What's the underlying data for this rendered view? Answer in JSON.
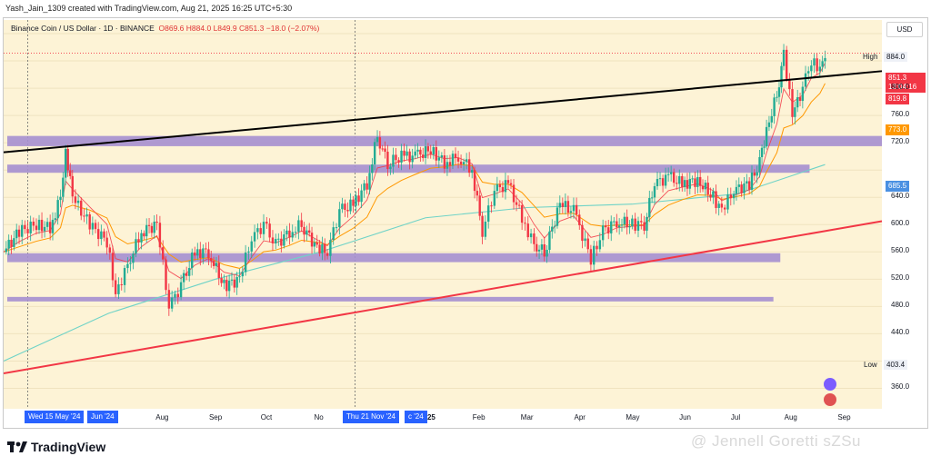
{
  "header": {
    "created_line": "Yash_Jain_1309 created with TradingView.com, Aug 21, 2025 16:25 UTC+5:30"
  },
  "legend": {
    "symbol": "Binance Coin / US Dollar · 1D · BINANCE",
    "open": "O869.6",
    "high": "H884.0",
    "low": "L849.9",
    "close": "C851.3",
    "change": "−18.0 (−2.07%)"
  },
  "currency": "USD",
  "price_labels": {
    "high_label": "High",
    "high_value": "884.0",
    "low_label": "Low",
    "low_value": "403.4",
    "last_price": "851.3",
    "countdown": "13:04:16",
    "ema_fast": "819.8",
    "ema_mid": "773.0",
    "ema_slow": "685.5"
  },
  "date_pills": {
    "left": "Wed 15 May '24",
    "left_partial": "Jun '24",
    "right": "Thu 21 Nov '24",
    "right_partial": "c '24"
  },
  "footer": {
    "brand": "TradingView",
    "watermark": "@ Jennell Goretti sZSu"
  },
  "colors": {
    "background": "#fdf3d6",
    "zone": "#a58fd0",
    "trend_black": "#000000",
    "trend_red": "#f23645",
    "candle_up": "#22ab94",
    "candle_down": "#f23645",
    "ema_fast": "#f23645",
    "ema_mid": "#ff9800",
    "ema_slow": "#6fd3c7",
    "last_price_tag": "#f23645",
    "ema_mid_tag": "#ff9800",
    "ema_slow_tag": "#4a90e2"
  },
  "chart_data": {
    "type": "candlestick",
    "title": "Binance Coin / US Dollar · 1D · BINANCE",
    "y_ticks": [
      360,
      400,
      440,
      480,
      520,
      560,
      600,
      640,
      680,
      720,
      760,
      800,
      840,
      880
    ],
    "y_tick_labels": [
      "360.0",
      "",
      "440.0",
      "480.0",
      "520.0",
      "560.0",
      "600.0",
      "640.0",
      "",
      "720.0",
      "760.0",
      "800.0",
      "",
      ""
    ],
    "ylim": [
      330,
      900
    ],
    "x_tick_labels": [
      "Jul",
      "Aug",
      "Sep",
      "Oct",
      "No",
      "2025",
      "Feb",
      "Mar",
      "Apr",
      "May",
      "Jun",
      "Jul",
      "Aug",
      "Sep"
    ],
    "x_tick_dates": [
      "2024-07-01",
      "2024-08-01",
      "2024-09-01",
      "2024-10-01",
      "2024-11-01",
      "2025-01-01",
      "2025-02-01",
      "2025-03-01",
      "2025-04-01",
      "2025-05-01",
      "2025-06-01",
      "2025-07-01",
      "2025-08-01",
      "2025-09-01"
    ],
    "xlim": [
      "2024-05-01",
      "2025-09-23"
    ],
    "series_close": [
      [
        "2024-05-01",
        560
      ],
      [
        "2024-05-10",
        590
      ],
      [
        "2024-05-20",
        600
      ],
      [
        "2024-05-28",
        595
      ],
      [
        "2024-06-03",
        640
      ],
      [
        "2024-06-06",
        712
      ],
      [
        "2024-06-10",
        640
      ],
      [
        "2024-06-20",
        600
      ],
      [
        "2024-06-30",
        575
      ],
      [
        "2024-07-05",
        500
      ],
      [
        "2024-07-12",
        540
      ],
      [
        "2024-07-20",
        590
      ],
      [
        "2024-07-29",
        600
      ],
      [
        "2024-08-05",
        480
      ],
      [
        "2024-08-12",
        510
      ],
      [
        "2024-08-20",
        560
      ],
      [
        "2024-08-28",
        560
      ],
      [
        "2024-09-06",
        510
      ],
      [
        "2024-09-15",
        520
      ],
      [
        "2024-09-22",
        580
      ],
      [
        "2024-09-29",
        600
      ],
      [
        "2024-10-06",
        570
      ],
      [
        "2024-10-14",
        590
      ],
      [
        "2024-10-21",
        600
      ],
      [
        "2024-10-30",
        565
      ],
      [
        "2024-11-05",
        560
      ],
      [
        "2024-11-12",
        620
      ],
      [
        "2024-11-20",
        630
      ],
      [
        "2024-11-28",
        660
      ],
      [
        "2024-12-04",
        730
      ],
      [
        "2024-12-10",
        690
      ],
      [
        "2024-12-18",
        700
      ],
      [
        "2024-12-26",
        700
      ],
      [
        "2025-01-04",
        710
      ],
      [
        "2025-01-12",
        690
      ],
      [
        "2025-01-20",
        700
      ],
      [
        "2025-01-28",
        680
      ],
      [
        "2025-02-03",
        590
      ],
      [
        "2025-02-10",
        650
      ],
      [
        "2025-02-18",
        660
      ],
      [
        "2025-02-26",
        610
      ],
      [
        "2025-03-05",
        570
      ],
      [
        "2025-03-11",
        560
      ],
      [
        "2025-03-20",
        630
      ],
      [
        "2025-03-28",
        620
      ],
      [
        "2025-04-07",
        550
      ],
      [
        "2025-04-14",
        590
      ],
      [
        "2025-04-22",
        605
      ],
      [
        "2025-05-01",
        600
      ],
      [
        "2025-05-08",
        600
      ],
      [
        "2025-05-14",
        660
      ],
      [
        "2025-05-22",
        670
      ],
      [
        "2025-05-30",
        660
      ],
      [
        "2025-06-08",
        665
      ],
      [
        "2025-06-17",
        640
      ],
      [
        "2025-06-22",
        620
      ],
      [
        "2025-06-29",
        650
      ],
      [
        "2025-07-08",
        660
      ],
      [
        "2025-07-14",
        690
      ],
      [
        "2025-07-18",
        740
      ],
      [
        "2025-07-24",
        790
      ],
      [
        "2025-07-28",
        850
      ],
      [
        "2025-08-02",
        760
      ],
      [
        "2025-08-08",
        800
      ],
      [
        "2025-08-13",
        840
      ],
      [
        "2025-08-18",
        830
      ],
      [
        "2025-08-21",
        851.3
      ]
    ],
    "zones": [
      [
        715,
        730
      ],
      [
        676,
        688
      ],
      [
        545,
        558
      ],
      [
        488,
        494
      ]
    ],
    "trendlines": [
      {
        "name": "resistance",
        "from": [
          "2024-05-01",
          706
        ],
        "to": [
          "2025-09-23",
          825
        ]
      },
      {
        "name": "support",
        "from": [
          "2024-05-01",
          382
        ],
        "to": [
          "2025-09-23",
          605
        ]
      }
    ],
    "ema_end_values": [
      819.8,
      773.0,
      685.5
    ],
    "high": 884.0,
    "low": 403.4,
    "last": 851.3
  }
}
